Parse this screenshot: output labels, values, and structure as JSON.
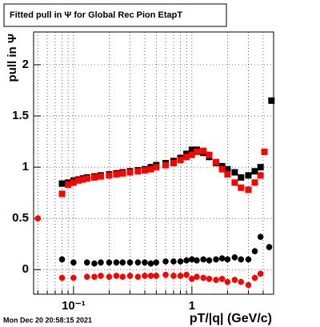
{
  "chart_data": {
    "type": "scatter",
    "title": "Fitted pull in  Ψ  for Global Rec Pion EtapT",
    "y_label": "pull in  Ψ",
    "x_label": "pT/|q| (GeV/c)",
    "timestamp": "Mon Dec 20 20:58:15 2021",
    "xlog": true,
    "grid": true,
    "xlim": [
      0.046,
      4.9
    ],
    "ylim": [
      -0.24,
      2.32
    ],
    "xticks": [
      {
        "value": 0.1,
        "label": "10⁻¹"
      },
      1
    ],
    "xminorticks": [
      0.05,
      0.06,
      0.07,
      0.08,
      0.09,
      0.2,
      0.3,
      0.4,
      0.5,
      0.6,
      0.7,
      0.8,
      0.9,
      2,
      3,
      4
    ],
    "yticks": [
      0,
      0.5,
      1,
      1.5,
      2
    ],
    "series": [
      {
        "color": "#000000",
        "marker": "square",
        "x": [
          0.08,
          0.09,
          0.1,
          0.11,
          0.12,
          0.13,
          0.15,
          0.17,
          0.2,
          0.23,
          0.26,
          0.3,
          0.35,
          0.4,
          0.45,
          0.5,
          0.6,
          0.7,
          0.8,
          0.9,
          1.0,
          1.1,
          1.25,
          1.4,
          1.6,
          1.8,
          2.0,
          2.3,
          2.6,
          3.0,
          3.4,
          3.8,
          4.7
        ],
        "values": [
          0.84,
          0.85,
          0.87,
          0.88,
          0.89,
          0.9,
          0.91,
          0.92,
          0.93,
          0.94,
          0.95,
          0.96,
          0.97,
          0.98,
          1.0,
          1.02,
          1.04,
          1.06,
          1.09,
          1.13,
          1.17,
          1.17,
          1.14,
          1.1,
          1.04,
          1.01,
          0.98,
          0.95,
          0.9,
          0.92,
          0.96,
          1.0,
          1.65
        ]
      },
      {
        "color": "#ff0000",
        "marker": "square",
        "x": [
          0.08,
          0.09,
          0.1,
          0.11,
          0.12,
          0.13,
          0.15,
          0.17,
          0.2,
          0.23,
          0.26,
          0.3,
          0.35,
          0.4,
          0.45,
          0.5,
          0.6,
          0.7,
          0.8,
          0.9,
          1.0,
          1.1,
          1.25,
          1.4,
          1.6,
          1.8,
          2.0,
          2.3,
          2.6,
          3.0,
          3.4,
          3.8,
          4.1
        ],
        "values": [
          0.74,
          0.83,
          0.85,
          0.87,
          0.88,
          0.89,
          0.9,
          0.91,
          0.92,
          0.93,
          0.94,
          0.95,
          0.96,
          0.97,
          0.98,
          1.0,
          1.02,
          1.04,
          1.07,
          1.1,
          1.12,
          1.15,
          1.16,
          1.12,
          1.05,
          0.98,
          0.93,
          0.85,
          0.8,
          0.78,
          0.85,
          0.92,
          1.15
        ]
      },
      {
        "color": "#000000",
        "marker": "circle",
        "x": [
          0.08,
          0.1,
          0.13,
          0.15,
          0.17,
          0.2,
          0.23,
          0.26,
          0.3,
          0.35,
          0.4,
          0.45,
          0.5,
          0.6,
          0.7,
          0.8,
          0.9,
          1.0,
          1.1,
          1.25,
          1.4,
          1.6,
          1.8,
          2.0,
          2.3,
          2.6,
          3.0,
          3.4,
          3.8,
          4.5
        ],
        "values": [
          0.1,
          0.07,
          0.07,
          0.06,
          0.07,
          0.07,
          0.07,
          0.07,
          0.07,
          0.07,
          0.07,
          0.06,
          0.07,
          0.08,
          0.08,
          0.08,
          0.09,
          0.1,
          0.09,
          0.1,
          0.09,
          0.1,
          0.11,
          0.1,
          0.12,
          0.1,
          0.1,
          0.18,
          0.32,
          0.22
        ]
      },
      {
        "color": "#ff0000",
        "marker": "circle",
        "x": [
          0.05,
          0.08,
          0.1,
          0.13,
          0.15,
          0.17,
          0.2,
          0.23,
          0.26,
          0.3,
          0.35,
          0.4,
          0.45,
          0.5,
          0.6,
          0.7,
          0.8,
          0.9,
          1.0,
          1.1,
          1.25,
          1.4,
          1.6,
          1.8,
          2.0,
          2.3,
          2.6,
          3.0,
          3.4,
          3.8
        ],
        "values": [
          0.5,
          -0.08,
          -0.08,
          -0.07,
          -0.07,
          -0.06,
          -0.07,
          -0.06,
          -0.07,
          -0.06,
          -0.07,
          -0.06,
          -0.06,
          -0.06,
          -0.05,
          -0.06,
          -0.06,
          -0.05,
          -0.09,
          -0.07,
          -0.08,
          -0.09,
          -0.1,
          -0.09,
          -0.12,
          -0.1,
          -0.12,
          -0.15,
          -0.08,
          -0.04
        ]
      }
    ]
  }
}
